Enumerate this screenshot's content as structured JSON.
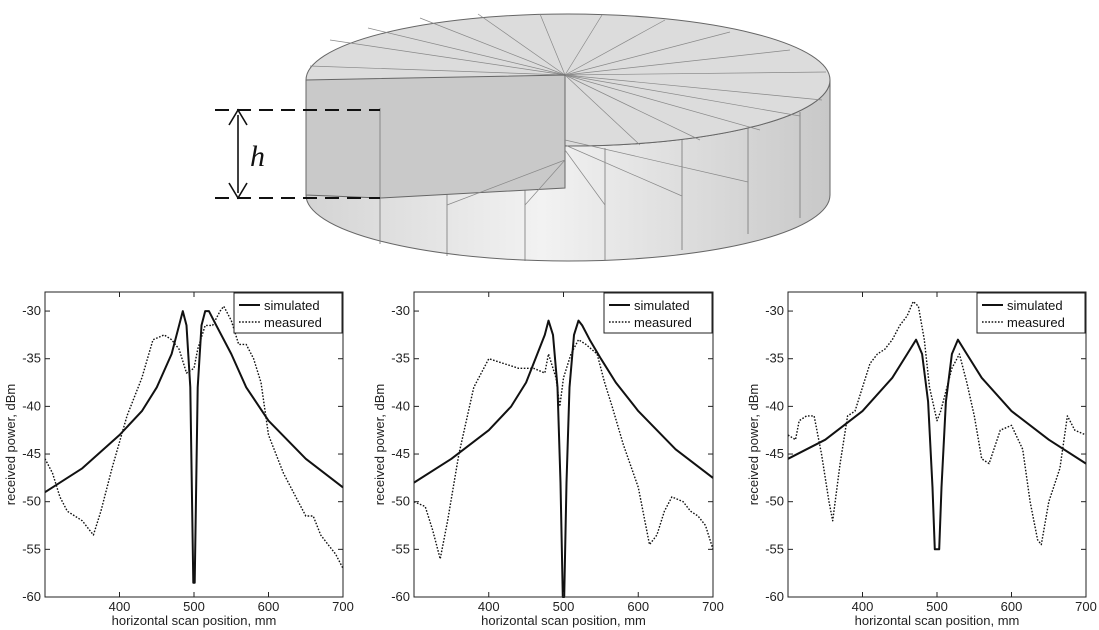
{
  "illustration": {
    "dimension_label": "h"
  },
  "chart_data": [
    {
      "type": "line",
      "xlabel": "horizontal scan position, mm",
      "ylabel": "received power, dBm",
      "xlim": [
        300,
        700
      ],
      "ylim": [
        -60,
        -28
      ],
      "xticks": [
        "400",
        "500",
        "600",
        "700"
      ],
      "yticks": [
        "-30",
        "-35",
        "-40",
        "-45",
        "-50",
        "-55",
        "-60"
      ],
      "legend_position": "top-right",
      "series": [
        {
          "name": "simulated",
          "style": "solid",
          "x": [
            300,
            350,
            400,
            430,
            450,
            470,
            480,
            485,
            490,
            495,
            499,
            501,
            505,
            510,
            515,
            520,
            530,
            550,
            570,
            600,
            650,
            700
          ],
          "y": [
            -49,
            -46.5,
            -43,
            -40.5,
            -38,
            -34.5,
            -31.5,
            -30,
            -31.5,
            -38,
            -58.5,
            -58.5,
            -38,
            -31.5,
            -30,
            -30,
            -31.5,
            -34.5,
            -38,
            -41.5,
            -45.5,
            -48.5
          ]
        },
        {
          "name": "measured",
          "style": "dotted",
          "x": [
            300,
            310,
            320,
            330,
            340,
            350,
            360,
            365,
            375,
            390,
            410,
            430,
            445,
            460,
            470,
            480,
            490,
            500,
            505,
            515,
            525,
            535,
            540,
            550,
            560,
            570,
            580,
            590,
            600,
            620,
            640,
            650,
            660,
            670,
            680,
            690,
            700
          ],
          "y": [
            -45.5,
            -47,
            -49.5,
            -51,
            -51.5,
            -52,
            -53,
            -53.5,
            -51,
            -46.5,
            -41,
            -37,
            -33,
            -32.5,
            -33,
            -34,
            -36.5,
            -36,
            -34,
            -31.5,
            -31.5,
            -30,
            -29.5,
            -31,
            -33.5,
            -33.5,
            -35,
            -37.5,
            -43,
            -47,
            -50,
            -51.5,
            -51.5,
            -53.5,
            -54.5,
            -55.5,
            -57
          ]
        }
      ]
    },
    {
      "type": "line",
      "xlabel": "horizontal scan position, mm",
      "ylabel": "received power, dBm",
      "xlim": [
        300,
        700
      ],
      "ylim": [
        -60,
        -28
      ],
      "xticks": [
        "400",
        "500",
        "600",
        "700"
      ],
      "yticks": [
        "-30",
        "-35",
        "-40",
        "-45",
        "-50",
        "-55",
        "-60"
      ],
      "legend_position": "top-right",
      "series": [
        {
          "name": "simulated",
          "style": "solid",
          "x": [
            300,
            350,
            400,
            430,
            450,
            465,
            475,
            480,
            486,
            492,
            496,
            499,
            501,
            504,
            508,
            514,
            520,
            525,
            535,
            550,
            570,
            600,
            650,
            700
          ],
          "y": [
            -48,
            -45.5,
            -42.5,
            -40,
            -37.5,
            -34.5,
            -32.5,
            -31,
            -32.5,
            -38,
            -48,
            -60,
            -60,
            -48,
            -38,
            -32.5,
            -31,
            -31.5,
            -33,
            -35,
            -37.5,
            -40.5,
            -44.5,
            -47.5
          ]
        },
        {
          "name": "measured",
          "style": "dotted",
          "x": [
            300,
            315,
            325,
            335,
            345,
            360,
            380,
            400,
            420,
            440,
            460,
            475,
            480,
            490,
            495,
            500,
            510,
            520,
            530,
            545,
            555,
            565,
            580,
            600,
            615,
            625,
            635,
            645,
            660,
            670,
            680,
            690,
            700
          ],
          "y": [
            -50,
            -50.5,
            -53,
            -56,
            -52,
            -45,
            -38,
            -35,
            -35.5,
            -36,
            -36,
            -36.5,
            -34.5,
            -37,
            -40,
            -37,
            -34.5,
            -33,
            -33.5,
            -34.5,
            -37.5,
            -40,
            -44,
            -48.5,
            -54.5,
            -53.5,
            -51,
            -49.5,
            -50,
            -51,
            -51.5,
            -52.5,
            -55
          ]
        }
      ]
    },
    {
      "type": "line",
      "xlabel": "horizontal scan position, mm",
      "ylabel": "received power, dBm",
      "xlim": [
        300,
        700
      ],
      "ylim": [
        -60,
        -28
      ],
      "xticks": [
        "400",
        "500",
        "600",
        "700"
      ],
      "yticks": [
        "-30",
        "-35",
        "-40",
        "-45",
        "-50",
        "-55",
        "-60"
      ],
      "legend_position": "top-right",
      "series": [
        {
          "name": "simulated",
          "style": "solid",
          "x": [
            300,
            350,
            400,
            440,
            460,
            472,
            480,
            488,
            494,
            497,
            503,
            506,
            512,
            520,
            528,
            540,
            560,
            600,
            650,
            700
          ],
          "y": [
            -45.5,
            -43.5,
            -40.5,
            -37,
            -34.5,
            -33,
            -34.5,
            -39.5,
            -48.5,
            -55,
            -55,
            -48.5,
            -39.5,
            -34.5,
            -33,
            -34.5,
            -37,
            -40.5,
            -43.5,
            -46
          ]
        },
        {
          "name": "measured",
          "style": "dotted",
          "x": [
            300,
            310,
            315,
            325,
            335,
            345,
            355,
            360,
            370,
            380,
            390,
            400,
            410,
            420,
            430,
            440,
            450,
            460,
            468,
            475,
            483,
            490,
            500,
            505,
            515,
            520,
            530,
            540,
            550,
            560,
            570,
            585,
            600,
            615,
            625,
            635,
            640,
            650,
            665,
            675,
            685,
            700
          ],
          "y": [
            -43,
            -43.5,
            -41.5,
            -41,
            -41,
            -45,
            -50,
            -52,
            -46,
            -41,
            -40.5,
            -38,
            -35.5,
            -34.5,
            -34,
            -33,
            -31.5,
            -30.5,
            -29,
            -29.5,
            -33,
            -38,
            -41.5,
            -40.5,
            -37.5,
            -36,
            -34.5,
            -37.5,
            -41,
            -45.5,
            -46,
            -42.5,
            -42,
            -44.5,
            -50,
            -54,
            -54.5,
            -50,
            -46.5,
            -41,
            -42.5,
            -43
          ]
        }
      ]
    }
  ]
}
